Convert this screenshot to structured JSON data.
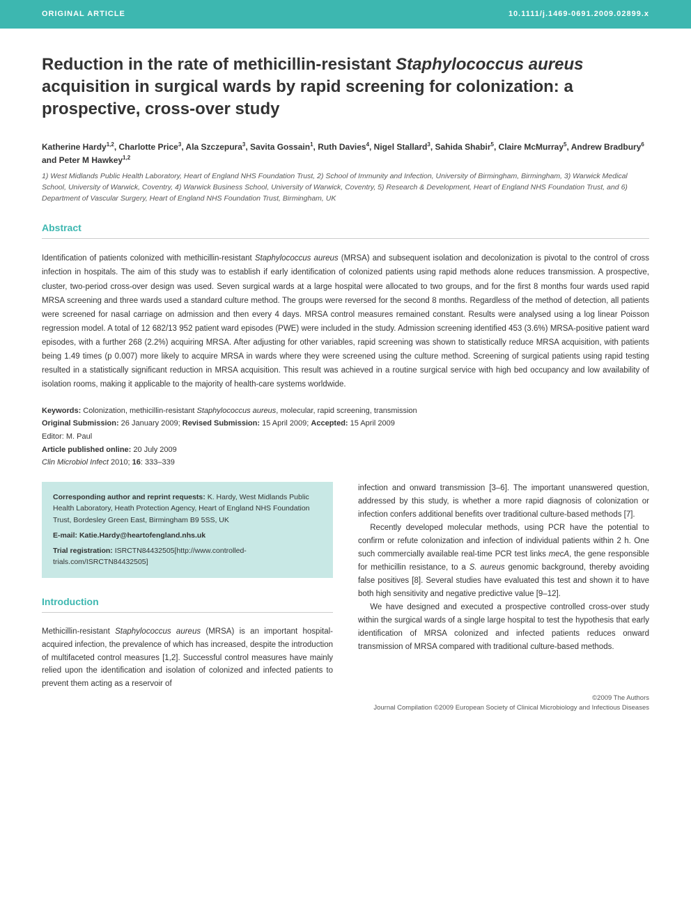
{
  "header": {
    "article_type": "ORIGINAL ARTICLE",
    "doi": "10.1111/j.1469-0691.2009.02899.x"
  },
  "title": {
    "pre": "Reduction in the rate of methicillin-resistant ",
    "italic": "Staphylococcus aureus",
    "post": " acquisition in surgical wards by rapid screening for colonization: a prospective, cross-over study"
  },
  "authors_html": "Katherine Hardy<sup>1,2</sup>, Charlotte Price<sup>3</sup>, Ala Szczepura<sup>3</sup>, Savita Gossain<sup>1</sup>, Ruth Davies<sup>4</sup>, Nigel Stallard<sup>3</sup>, Sahida Shabir<sup>5</sup>, Claire McMurray<sup>5</sup>, Andrew Bradbury<sup>6</sup> and Peter M Hawkey<sup>1,2</sup>",
  "affiliations": "1) West Midlands Public Health Laboratory, Heart of England NHS Foundation Trust, 2) School of Immunity and Infection, University of Birmingham, Birmingham, 3) Warwick Medical School, University of Warwick, Coventry, 4) Warwick Business School, University of Warwick, Coventry, 5) Research & Development, Heart of England NHS Foundation Trust, and 6) Department of Vascular Surgery, Heart of England NHS Foundation Trust, Birmingham, UK",
  "abstract": {
    "heading": "Abstract",
    "text_pre": "Identification of patients colonized with methicillin-resistant ",
    "text_italic": "Staphylococcus aureus",
    "text_post": " (MRSA) and subsequent isolation and decolonization is pivotal to the control of cross infection in hospitals. The aim of this study was to establish if early identification of colonized patients using rapid methods alone reduces transmission. A prospective, cluster, two-period cross-over design was used. Seven surgical wards at a large hospital were allocated to two groups, and for the first 8 months four wards used rapid MRSA screening and three wards used a standard culture method. The groups were reversed for the second 8 months. Regardless of the method of detection, all patients were screened for nasal carriage on admission and then every 4 days. MRSA control measures remained constant. Results were analysed using a log linear Poisson regression model. A total of 12 682/13 952 patient ward episodes (PWE) were included in the study. Admission screening identified 453 (3.6%) MRSA-positive patient ward episodes, with a further 268 (2.2%) acquiring MRSA. After adjusting for other variables, rapid screening was shown to statistically reduce MRSA acquisition, with patients being 1.49 times (p 0.007) more likely to acquire MRSA in wards where they were screened using the culture method. Screening of surgical patients using rapid testing resulted in a statistically significant reduction in MRSA acquisition. This result was achieved in a routine surgical service with high bed occupancy and low availability of isolation rooms, making it applicable to the majority of health-care systems worldwide."
  },
  "keywords": {
    "label": "Keywords:",
    "pre": " Colonization, methicillin-resistant ",
    "italic": "Staphylococcus aureus",
    "post": ", molecular, rapid screening, transmission"
  },
  "submission": {
    "orig_label": "Original Submission:",
    "orig_date": " 26 January 2009; ",
    "rev_label": "Revised Submission:",
    "rev_date": " 15 April 2009; ",
    "acc_label": "Accepted:",
    "acc_date": " 15 April 2009"
  },
  "editor": "Editor: M. Paul",
  "pub_online": {
    "label": "Article published online:",
    "date": " 20 July 2009"
  },
  "citation": {
    "journal": "Clin Microbiol Infect",
    "rest": " 2010; ",
    "vol": "16",
    "pages": ": 333–339"
  },
  "corr": {
    "label": "Corresponding author and reprint requests:",
    "text": " K. Hardy, West Midlands Public Health Laboratory, Heath Protection Agency, Heart of England NHS Foundation Trust, Bordesley Green East, Birmingham B9 5SS, UK",
    "email_label": "E-mail: ",
    "email": "Katie.Hardy@heartofengland.nhs.uk",
    "trial_label": "Trial registration:",
    "trial": " ISRCTN84432505[http://www.controlled-trials.com/ISRCTN84432505]"
  },
  "intro": {
    "heading": "Introduction",
    "p1_pre": "Methicillin-resistant ",
    "p1_italic": "Staphylococcus aureus",
    "p1_post": " (MRSA) is an important hospital-acquired infection, the prevalence of which has increased, despite the introduction of multifaceted control measures [1,2]. Successful control measures have mainly relied upon the identification and isolation of colonized and infected patients to prevent them acting as a reservoir of",
    "p2": "infection and onward transmission [3–6]. The important unanswered question, addressed by this study, is whether a more rapid diagnosis of colonization or infection confers additional benefits over traditional culture-based methods [7].",
    "p3_pre": "Recently developed molecular methods, using PCR have the potential to confirm or refute colonization and infection of individual patients within 2 h. One such commercially available real-time PCR test links ",
    "p3_it1": "mecA",
    "p3_mid": ", the gene responsible for methicillin resistance, to a ",
    "p3_it2": "S. aureus",
    "p3_post": " genomic background, thereby avoiding false positives [8]. Several studies have evaluated this test and shown it to have both high sensitivity and negative predictive value [9–12].",
    "p4": "We have designed and executed a prospective controlled cross-over study within the surgical wards of a single large hospital to test the hypothesis that early identification of MRSA colonized and infected patients reduces onward transmission of MRSA compared with traditional culture-based methods."
  },
  "footer": {
    "line1": "©2009 The Authors",
    "line2": "Journal Compilation ©2009 European Society of Clinical Microbiology and Infectious Diseases"
  },
  "colors": {
    "teal": "#3db7b0",
    "teal_light": "#c8e8e5",
    "text": "#333333",
    "rule": "#cccccc"
  }
}
